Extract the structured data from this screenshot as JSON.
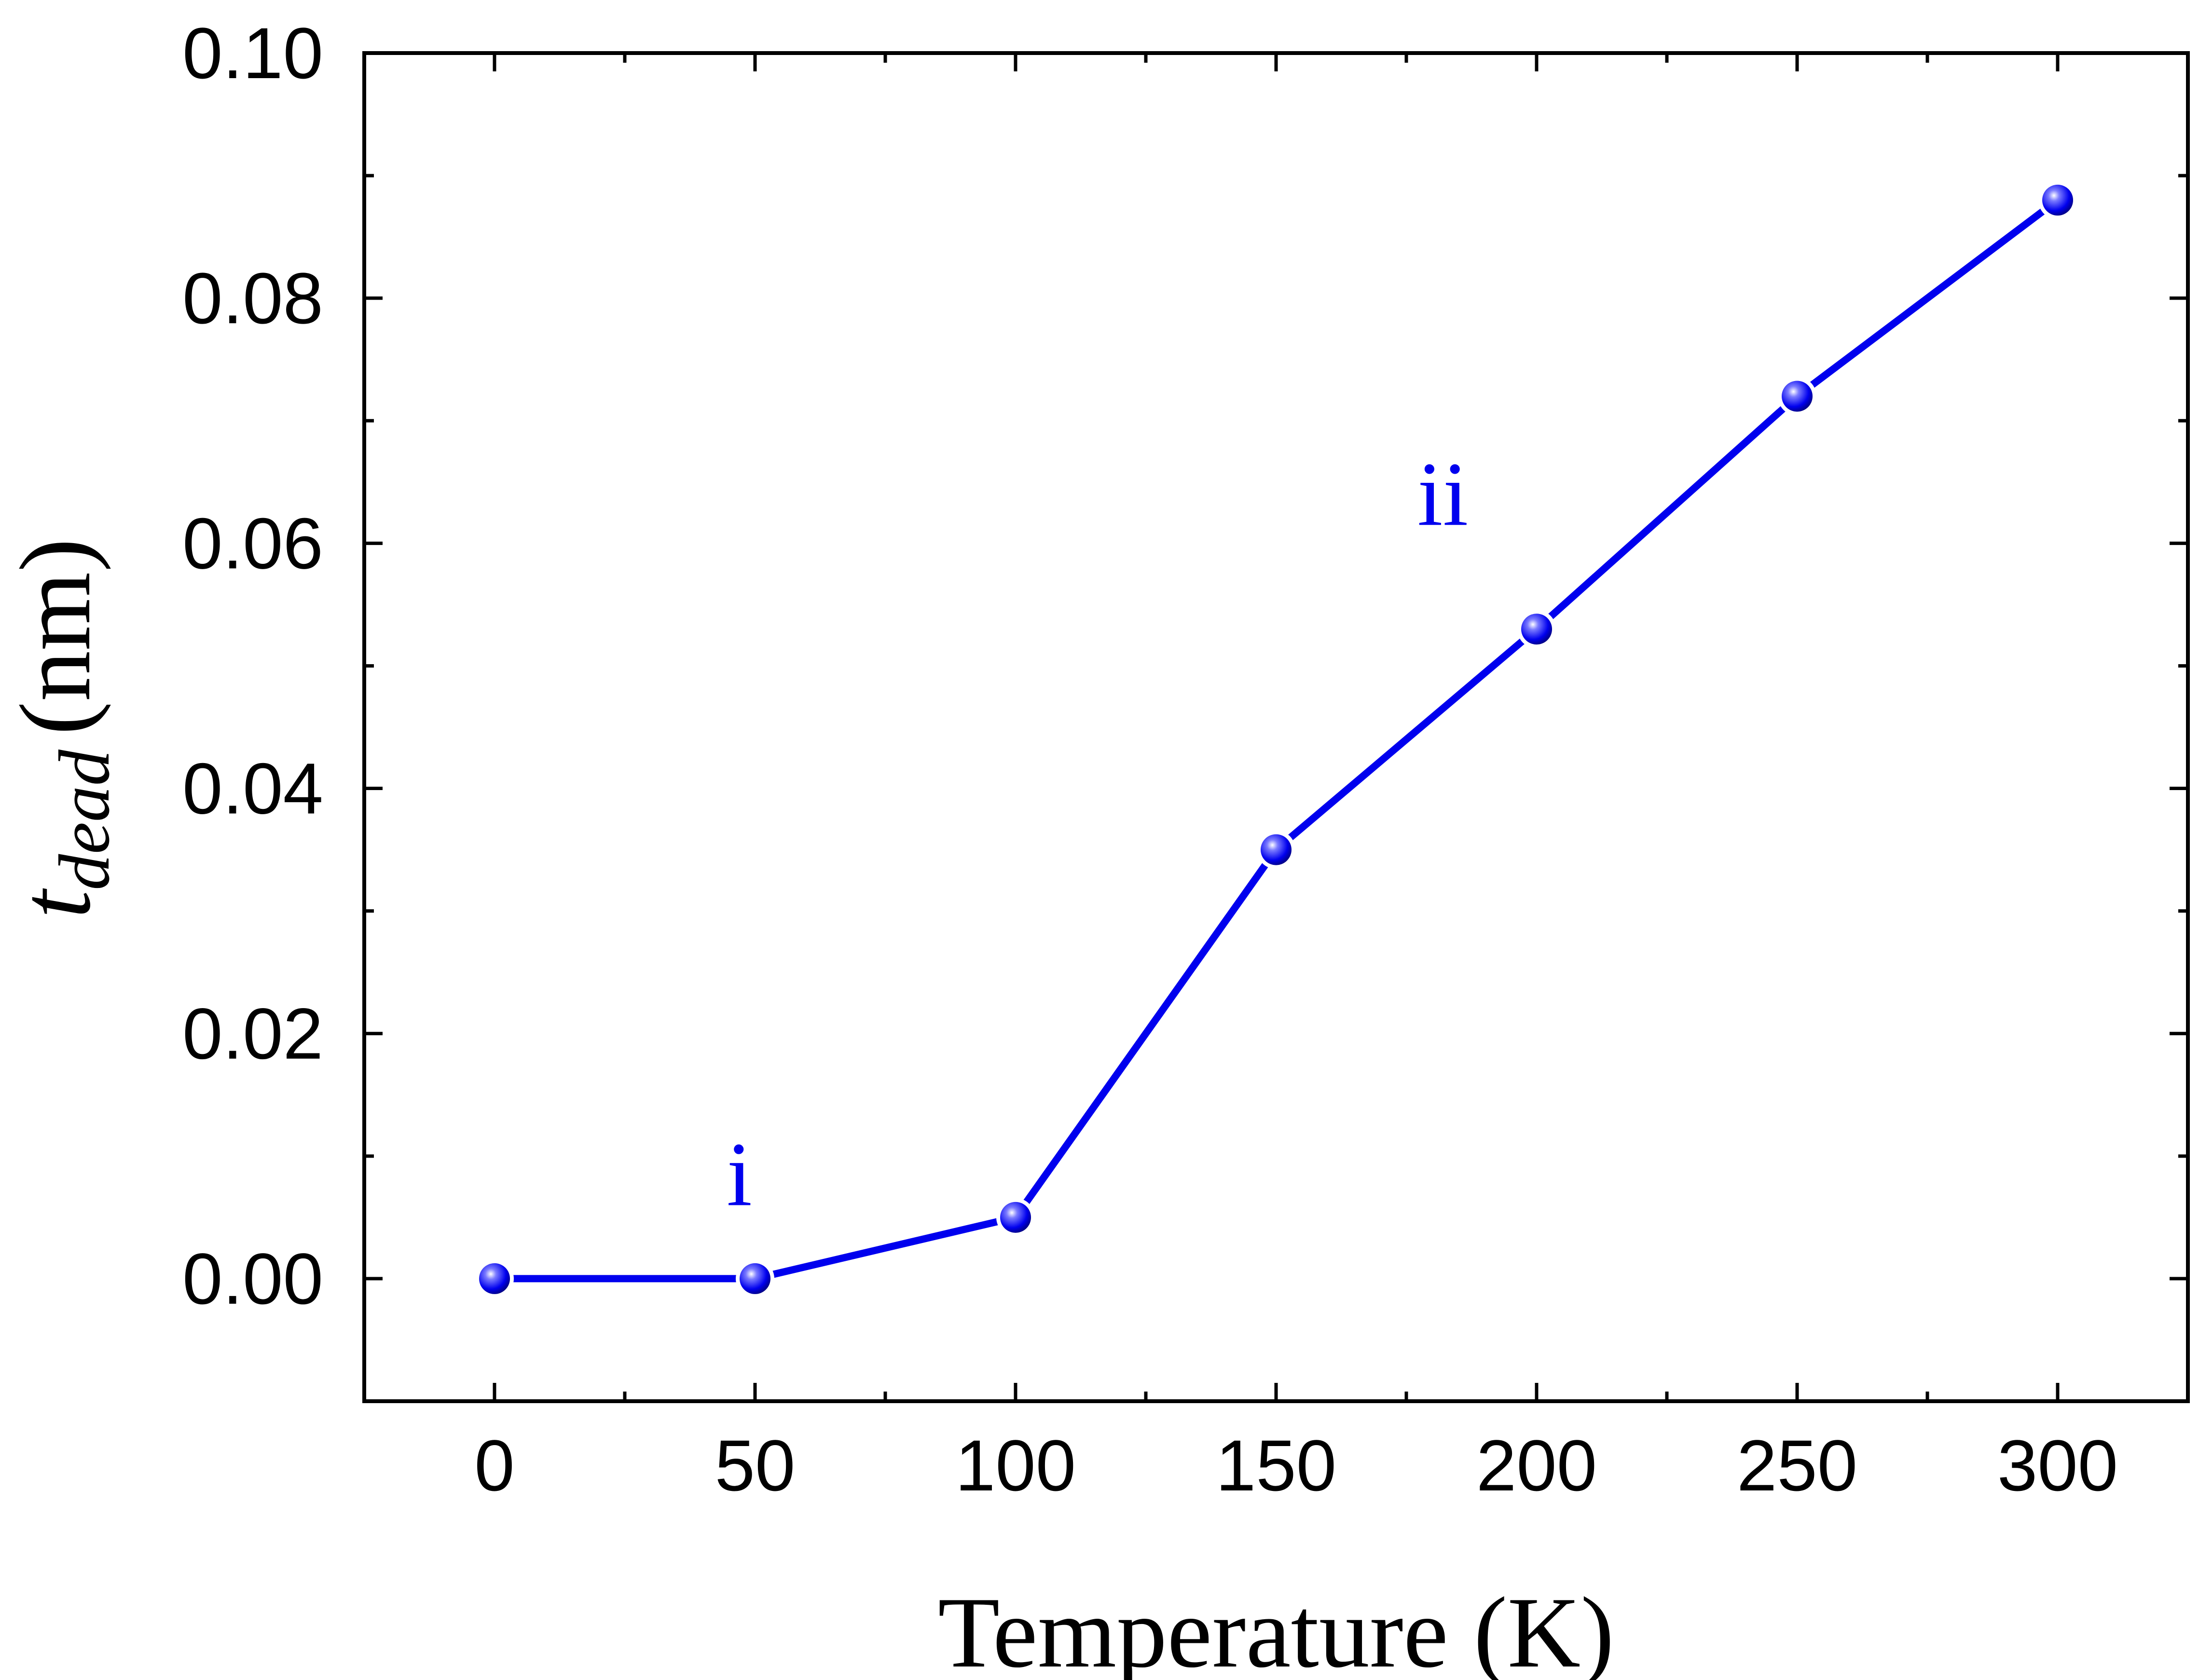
{
  "chart_data": {
    "type": "line",
    "title": "",
    "xlabel": "Temperature (K)",
    "ylabel": {
      "main": "t",
      "subscript": "dead",
      "unit": "(nm)"
    },
    "xlim": [
      -25,
      325
    ],
    "ylim": [
      -0.01,
      0.1
    ],
    "x_ticks": [
      0,
      50,
      100,
      150,
      200,
      250,
      300
    ],
    "x_tick_labels": [
      "0",
      "50",
      "100",
      "150",
      "200",
      "250",
      "300"
    ],
    "x_minor_ticks": [
      25,
      75,
      125,
      175,
      225,
      275
    ],
    "y_ticks": [
      0.0,
      0.02,
      0.04,
      0.06,
      0.08,
      0.1
    ],
    "y_tick_labels": [
      "0.00",
      "0.02",
      "0.04",
      "0.06",
      "0.08",
      "0.10"
    ],
    "y_minor_ticks": [
      -0.01,
      0.01,
      0.03,
      0.05,
      0.07,
      0.09
    ],
    "grid": false,
    "series": [
      {
        "color": "#0000ee",
        "marker": "sphere",
        "x": [
          0,
          50,
          100,
          150,
          200,
          250,
          300
        ],
        "y": [
          0.0,
          0.0,
          0.005,
          0.035,
          0.053,
          0.072,
          0.088
        ]
      }
    ],
    "annotations": [
      {
        "text": "i",
        "x": 47,
        "y": 0.006,
        "color": "#0000ee"
      },
      {
        "text": "ii",
        "x": 182,
        "y": 0.0615,
        "color": "#0000ee"
      }
    ]
  }
}
